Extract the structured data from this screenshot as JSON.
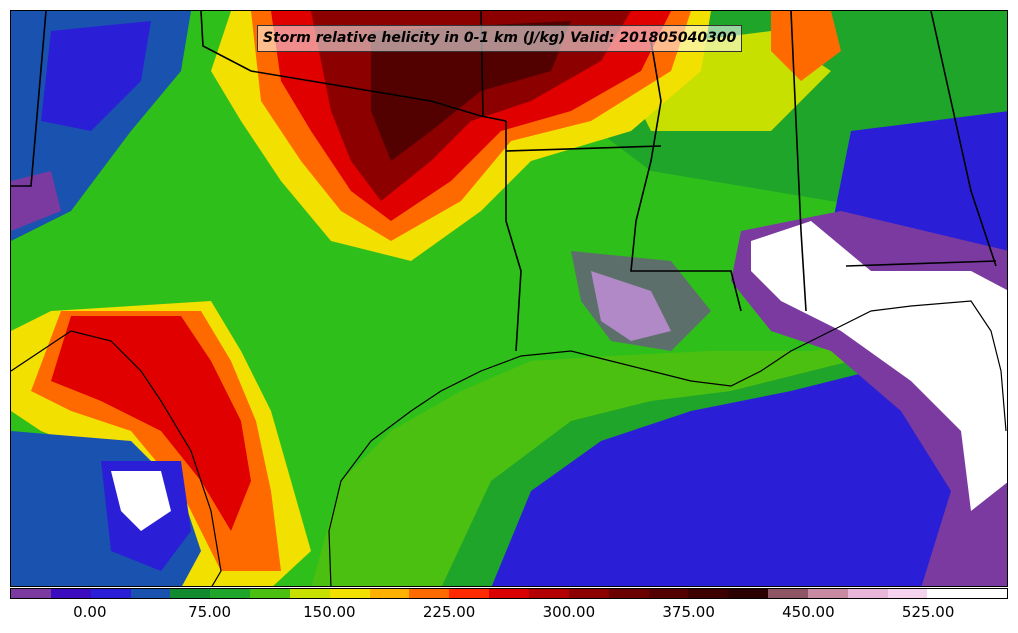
{
  "title": "Storm relative helicity in 0-1 km (J/kg) Valid: 201805040300",
  "colorbar": {
    "colors": [
      "#7b3aa0",
      "#3c0dbf",
      "#2a1fd6",
      "#1a52b0",
      "#128a2e",
      "#1ea52a",
      "#4cc010",
      "#c7e000",
      "#f2e000",
      "#ffb000",
      "#ff6a00",
      "#ff2a00",
      "#d90000",
      "#b30000",
      "#8c0000",
      "#6b0000",
      "#520000",
      "#3d0000",
      "#2b0000",
      "#8e5565",
      "#c88aa0",
      "#e8b6d8",
      "#f5d3ee",
      "#ffffff",
      "#ffffff"
    ],
    "tick_labels": [
      "0.00",
      "75.00",
      "150.00",
      "225.00",
      "300.00",
      "375.00",
      "450.00",
      "525.00"
    ],
    "tick_values": [
      0,
      75,
      150,
      225,
      300,
      375,
      450,
      525
    ],
    "range": [
      -50,
      575
    ]
  },
  "field_colors": {
    "ocean_deep": "#2a1fd6",
    "ocean_mid": "#1a52b0",
    "land_green": "#2fbf1a",
    "bright_green": "#4cc010",
    "yellow": "#f2e000",
    "orange": "#ff8c00",
    "red": "#e00000",
    "dark_red": "#8c0000",
    "darkest": "#3d0000",
    "purple": "#7b3aa0",
    "white": "#ffffff"
  }
}
